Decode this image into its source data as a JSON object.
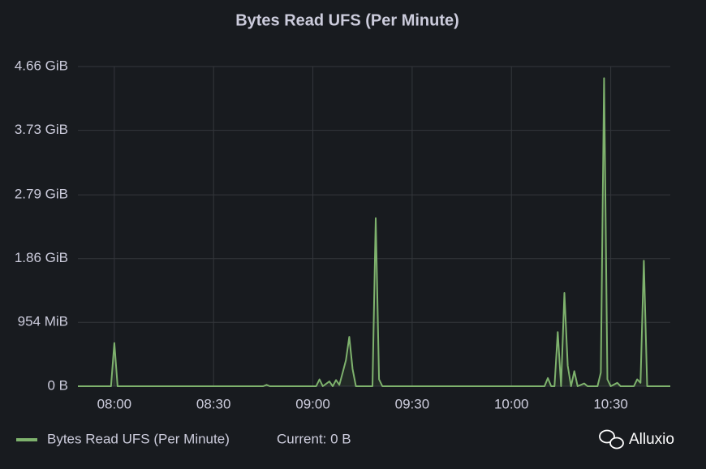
{
  "chart_data": {
    "type": "line",
    "title": "Bytes Read UFS (Per Minute)",
    "series": [
      {
        "name": "Bytes Read UFS (Per Minute)",
        "color": "#7eb26d",
        "x": [
          "07:49",
          "07:59",
          "08:00",
          "08:01",
          "08:45",
          "08:46",
          "08:47",
          "09:01",
          "09:02",
          "09:03",
          "09:05",
          "09:06",
          "09:07",
          "09:08",
          "09:09",
          "09:10",
          "09:11",
          "09:12",
          "09:13",
          "09:18",
          "09:19",
          "09:20",
          "09:21",
          "10:10",
          "10:11",
          "10:12",
          "10:13",
          "10:14",
          "10:15",
          "10:16",
          "10:17",
          "10:18",
          "10:19",
          "10:20",
          "10:22",
          "10:23",
          "10:26",
          "10:27",
          "10:28",
          "10:29",
          "10:30",
          "10:32",
          "10:33",
          "10:37",
          "10:38",
          "10:39",
          "10:40",
          "10:41",
          "10:48"
        ],
        "values": [
          0,
          0,
          0.63,
          0,
          0,
          0.02,
          0,
          0,
          0.1,
          0,
          0.07,
          0,
          0.09,
          0.02,
          0.2,
          0.38,
          0.72,
          0.25,
          0,
          0,
          2.45,
          0.1,
          0,
          0,
          0.12,
          0,
          0,
          0.79,
          0,
          1.36,
          0.3,
          0,
          0.22,
          0,
          0.04,
          0,
          0,
          0.2,
          4.49,
          0.1,
          0,
          0.05,
          0,
          0,
          0.1,
          0.05,
          1.83,
          0,
          0
        ]
      }
    ],
    "legend_current": "Current: 0 B",
    "xlim": [
      "07:49",
      "10:48"
    ],
    "xticks": [
      "08:00",
      "08:30",
      "09:00",
      "09:30",
      "10:00",
      "10:30"
    ],
    "ylim": [
      0,
      4.66
    ],
    "yticks": [
      {
        "value": 0,
        "label": "0 B"
      },
      {
        "value": 0.9317,
        "label": "954 MiB"
      },
      {
        "value": 1.86,
        "label": "1.86 GiB"
      },
      {
        "value": 2.79,
        "label": "2.79 GiB"
      },
      {
        "value": 3.73,
        "label": "3.73 GiB"
      },
      {
        "value": 4.66,
        "label": "4.66 GiB"
      }
    ],
    "grid": true,
    "watermark": "Alluxio"
  }
}
